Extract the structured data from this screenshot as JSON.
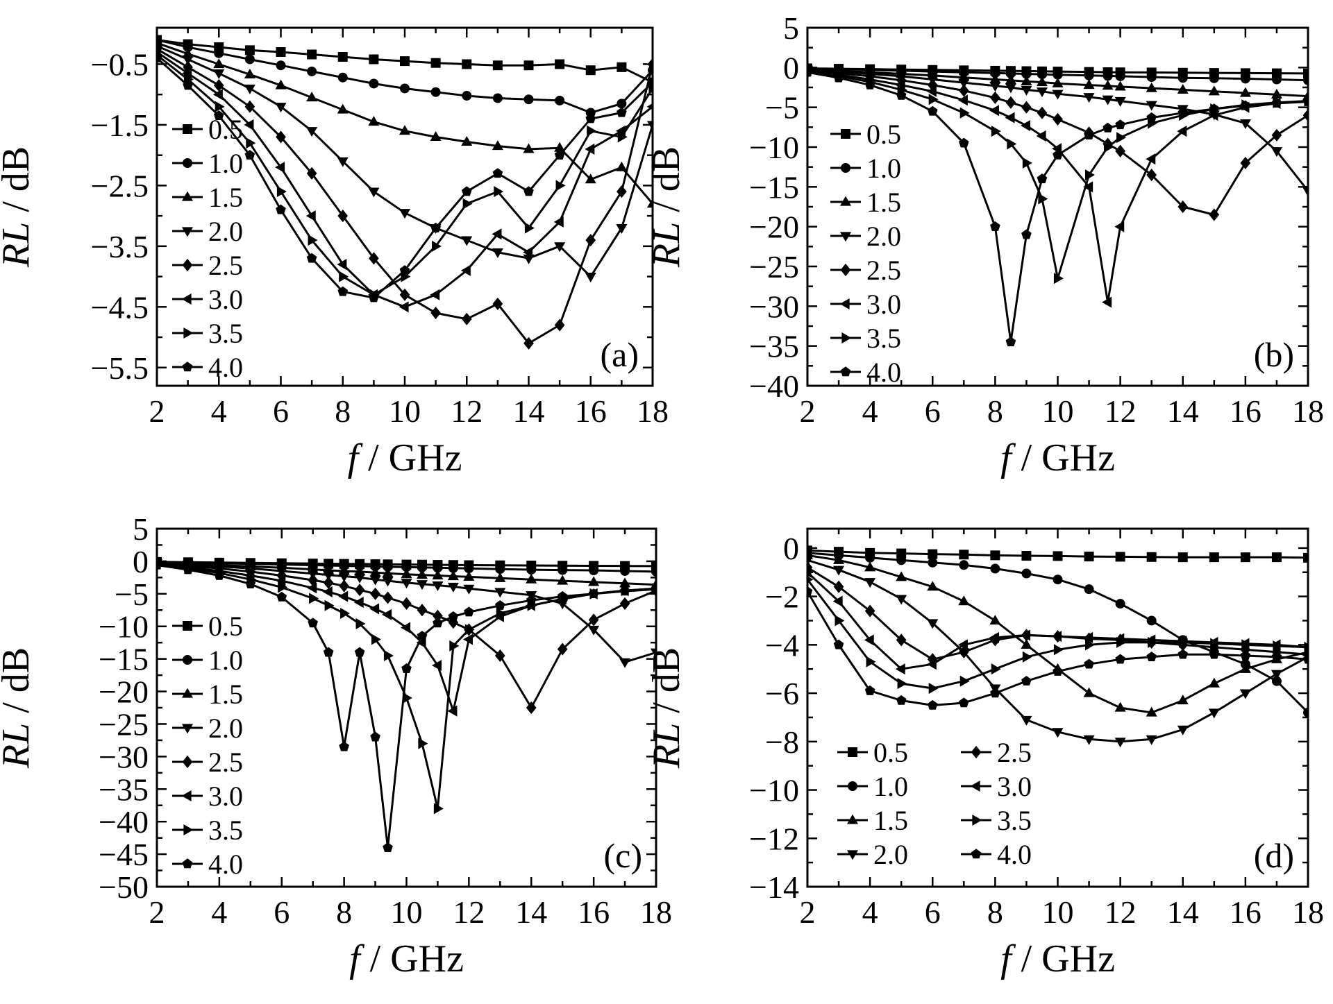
{
  "chart_data": [
    {
      "type": "line",
      "panel_label": "(a)",
      "xlabel_var": "f",
      "xlabel_unit": " / GHz",
      "ylabel_var": "RL",
      "ylabel_unit": " / dB",
      "xlim": [
        2,
        18
      ],
      "ylim": [
        -5.8,
        0.1
      ],
      "xticks": [
        2,
        4,
        6,
        8,
        10,
        12,
        14,
        16,
        18
      ],
      "xticklabels": [
        "2",
        "4",
        "6",
        "8",
        "10",
        "12",
        "14",
        "16",
        "18"
      ],
      "yticks": [
        -0.5,
        -1.5,
        -2.5,
        -3.5,
        -4.5,
        -5.5
      ],
      "yticklabels": [
        "−0.5",
        "−1.5",
        "−2.5",
        "−3.5",
        "−4.5",
        "−5.5"
      ],
      "legend_position": "left",
      "legend_columns": 1,
      "x": [
        2,
        3,
        4,
        5,
        6,
        7,
        8,
        9,
        10,
        11,
        12,
        13,
        14,
        15,
        16,
        17,
        18
      ],
      "series": [
        {
          "name": "0.5",
          "marker": "square",
          "values": [
            -0.1,
            -0.17,
            -0.22,
            -0.27,
            -0.3,
            -0.34,
            -0.38,
            -0.42,
            -0.45,
            -0.48,
            -0.5,
            -0.52,
            -0.52,
            -0.5,
            -0.6,
            -0.55,
            -0.8
          ]
        },
        {
          "name": "1.0",
          "marker": "circle",
          "values": [
            -0.1,
            -0.22,
            -0.32,
            -0.42,
            -0.52,
            -0.62,
            -0.72,
            -0.82,
            -0.9,
            -0.96,
            -1.02,
            -1.06,
            -1.08,
            -1.1,
            -1.3,
            -1.15,
            -0.6
          ]
        },
        {
          "name": "1.5",
          "marker": "triangle-up",
          "values": [
            -0.15,
            -0.33,
            -0.5,
            -0.67,
            -0.85,
            -1.05,
            -1.25,
            -1.45,
            -1.6,
            -1.7,
            -1.78,
            -1.85,
            -1.9,
            -1.88,
            -2.4,
            -2.2,
            -2.8
          ]
        },
        {
          "name": "2.0",
          "marker": "triangle-down",
          "values": [
            -0.2,
            -0.42,
            -0.65,
            -0.9,
            -1.2,
            -1.6,
            -2.1,
            -2.6,
            -2.95,
            -3.2,
            -3.4,
            -3.6,
            -3.7,
            -3.5,
            -4.0,
            -3.2,
            -1.5
          ]
        },
        {
          "name": "2.5",
          "marker": "diamond",
          "values": [
            -0.25,
            -0.55,
            -0.85,
            -1.2,
            -1.7,
            -2.3,
            -3.0,
            -3.7,
            -4.3,
            -4.6,
            -4.7,
            -4.45,
            -5.1,
            -4.8,
            -3.4,
            -2.6,
            -0.5
          ]
        },
        {
          "name": "3.0",
          "marker": "triangle-left",
          "values": [
            -0.3,
            -0.65,
            -1.0,
            -1.5,
            -2.2,
            -3.0,
            -3.8,
            -4.3,
            -4.5,
            -4.3,
            -3.9,
            -3.3,
            -3.6,
            -3.1,
            -1.9,
            -1.6,
            -1.2
          ]
        },
        {
          "name": "3.5",
          "marker": "triangle-right",
          "values": [
            -0.35,
            -0.75,
            -1.2,
            -1.8,
            -2.6,
            -3.4,
            -4.0,
            -4.3,
            -4.0,
            -3.5,
            -2.8,
            -2.6,
            -3.2,
            -2.5,
            -1.6,
            -1.7,
            -0.9
          ]
        },
        {
          "name": "4.0",
          "marker": "pentagon",
          "values": [
            -0.4,
            -0.85,
            -1.35,
            -2.0,
            -2.9,
            -3.7,
            -4.25,
            -4.35,
            -3.9,
            -3.2,
            -2.6,
            -2.3,
            -2.6,
            -2.0,
            -1.4,
            -1.3,
            -0.8
          ]
        }
      ]
    },
    {
      "type": "line",
      "panel_label": "(b)",
      "xlabel_var": "f",
      "xlabel_unit": " / GHz",
      "ylabel_var": "RL",
      "ylabel_unit": " / dB",
      "xlim": [
        2,
        18
      ],
      "ylim": [
        -40,
        5
      ],
      "xticks": [
        2,
        4,
        6,
        8,
        10,
        12,
        14,
        16,
        18
      ],
      "xticklabels": [
        "2",
        "4",
        "6",
        "8",
        "10",
        "12",
        "14",
        "16",
        "18"
      ],
      "yticks": [
        5,
        0,
        -5,
        -10,
        -15,
        -20,
        -25,
        -30,
        -35,
        -40
      ],
      "yticklabels": [
        "5",
        "0",
        "−5",
        "−10",
        "−15",
        "−20",
        "−25",
        "−30",
        "−35",
        "−40"
      ],
      "legend_position": "left",
      "legend_columns": 1,
      "x": [
        2,
        3,
        4,
        5,
        6,
        7,
        8,
        8.5,
        9,
        9.5,
        10,
        11,
        11.6,
        12,
        13,
        14,
        15,
        16,
        17,
        18
      ],
      "series": [
        {
          "name": "0.5",
          "marker": "square",
          "values": [
            -0.1,
            -0.15,
            -0.2,
            -0.25,
            -0.3,
            -0.35,
            -0.4,
            -0.42,
            -0.45,
            -0.48,
            -0.5,
            -0.55,
            -0.58,
            -0.6,
            -0.62,
            -0.65,
            -0.68,
            -0.7,
            -0.72,
            -0.75
          ]
        },
        {
          "name": "1.0",
          "marker": "circle",
          "values": [
            -0.1,
            -0.2,
            -0.3,
            -0.4,
            -0.5,
            -0.6,
            -0.7,
            -0.75,
            -0.8,
            -0.85,
            -0.9,
            -1.0,
            -1.05,
            -1.1,
            -1.2,
            -1.3,
            -1.35,
            -1.4,
            -1.5,
            -1.6
          ]
        },
        {
          "name": "1.5",
          "marker": "triangle-up",
          "values": [
            -0.2,
            -0.4,
            -0.6,
            -0.8,
            -1.0,
            -1.25,
            -1.5,
            -1.6,
            -1.75,
            -1.85,
            -2.0,
            -2.2,
            -2.3,
            -2.4,
            -2.6,
            -2.8,
            -3.0,
            -3.2,
            -3.4,
            -3.6
          ]
        },
        {
          "name": "2.0",
          "marker": "triangle-down",
          "values": [
            -0.25,
            -0.5,
            -0.8,
            -1.1,
            -1.5,
            -1.9,
            -2.3,
            -2.5,
            -2.8,
            -3.0,
            -3.3,
            -3.7,
            -4.0,
            -4.2,
            -4.7,
            -5.2,
            -5.9,
            -7.0,
            -10.5,
            -15.5
          ]
        },
        {
          "name": "2.5",
          "marker": "diamond",
          "values": [
            -0.3,
            -0.7,
            -1.1,
            -1.6,
            -2.2,
            -2.9,
            -3.8,
            -4.4,
            -5.0,
            -5.7,
            -6.5,
            -8.2,
            -9.6,
            -10.5,
            -13.5,
            -17.5,
            -18.5,
            -12.0,
            -8.5,
            -6.0
          ]
        },
        {
          "name": "3.0",
          "marker": "triangle-left",
          "values": [
            -0.4,
            -0.9,
            -1.5,
            -2.2,
            -3.0,
            -4.1,
            -5.4,
            -6.3,
            -7.3,
            -8.6,
            -10.2,
            -15.0,
            -29.5,
            -20.0,
            -11.5,
            -8.0,
            -6.0,
            -5.0,
            -4.5,
            -4.2
          ]
        },
        {
          "name": "3.5",
          "marker": "triangle-right",
          "values": [
            -0.5,
            -1.1,
            -1.8,
            -2.8,
            -4.0,
            -5.7,
            -8.0,
            -9.6,
            -12.0,
            -16.5,
            -26.5,
            -13.5,
            -10.0,
            -8.8,
            -7.0,
            -6.0,
            -5.2,
            -4.7,
            -4.4,
            -4.2
          ]
        },
        {
          "name": "4.0",
          "marker": "pentagon",
          "values": [
            -0.6,
            -1.3,
            -2.2,
            -3.5,
            -5.5,
            -9.5,
            -20.0,
            -34.5,
            -21.0,
            -14.0,
            -11.0,
            -8.5,
            -7.6,
            -7.2,
            -6.3,
            -5.7,
            -5.2,
            -4.8,
            -4.5,
            -4.3
          ]
        }
      ]
    },
    {
      "type": "line",
      "panel_label": "(c)",
      "xlabel_var": "f",
      "xlabel_unit": " / GHz",
      "ylabel_var": "RL",
      "ylabel_unit": " / dB",
      "xlim": [
        2,
        18
      ],
      "ylim": [
        -50,
        5
      ],
      "xticks": [
        2,
        4,
        6,
        8,
        10,
        12,
        14,
        16,
        18
      ],
      "xticklabels": [
        "2",
        "4",
        "6",
        "8",
        "10",
        "12",
        "14",
        "16",
        "18"
      ],
      "yticks": [
        5,
        0,
        -5,
        -10,
        -15,
        -20,
        -25,
        -30,
        -35,
        -40,
        -45,
        -50
      ],
      "yticklabels": [
        "5",
        "0",
        "−5",
        "−10",
        "−15",
        "−20",
        "−25",
        "−30",
        "−35",
        "−40",
        "−45",
        "−50"
      ],
      "legend_position": "left",
      "legend_columns": 1,
      "x": [
        2,
        3,
        4,
        5,
        6,
        7,
        7.5,
        8,
        8.5,
        9,
        9.4,
        10,
        10.5,
        11,
        11.5,
        12,
        13,
        14,
        15,
        16,
        17,
        18
      ],
      "series": [
        {
          "name": "0.5",
          "marker": "square",
          "values": [
            -0.1,
            -0.15,
            -0.2,
            -0.25,
            -0.3,
            -0.35,
            -0.38,
            -0.4,
            -0.42,
            -0.45,
            -0.47,
            -0.5,
            -0.52,
            -0.55,
            -0.57,
            -0.6,
            -0.62,
            -0.65,
            -0.68,
            -0.7,
            -0.72,
            -0.75
          ]
        },
        {
          "name": "1.0",
          "marker": "circle",
          "values": [
            -0.1,
            -0.2,
            -0.3,
            -0.4,
            -0.5,
            -0.6,
            -0.65,
            -0.7,
            -0.75,
            -0.8,
            -0.85,
            -0.9,
            -0.95,
            -1.0,
            -1.05,
            -1.1,
            -1.2,
            -1.3,
            -1.35,
            -1.4,
            -1.5,
            -1.6
          ]
        },
        {
          "name": "1.5",
          "marker": "triangle-up",
          "values": [
            -0.2,
            -0.4,
            -0.6,
            -0.8,
            -1.0,
            -1.25,
            -1.4,
            -1.5,
            -1.6,
            -1.75,
            -1.85,
            -2.0,
            -2.1,
            -2.2,
            -2.3,
            -2.4,
            -2.6,
            -2.8,
            -3.0,
            -3.2,
            -3.4,
            -3.6
          ]
        },
        {
          "name": "2.0",
          "marker": "triangle-down",
          "values": [
            -0.25,
            -0.5,
            -0.8,
            -1.1,
            -1.5,
            -1.9,
            -2.1,
            -2.3,
            -2.5,
            -2.8,
            -3.0,
            -3.3,
            -3.5,
            -3.7,
            -3.9,
            -4.2,
            -4.7,
            -5.2,
            -6.5,
            -10.5,
            -15.5,
            -14.0
          ]
        },
        {
          "name": "2.5",
          "marker": "diamond",
          "values": [
            -0.3,
            -0.7,
            -1.1,
            -1.6,
            -2.2,
            -2.9,
            -3.3,
            -3.8,
            -4.4,
            -5.0,
            -5.6,
            -6.5,
            -7.5,
            -8.4,
            -9.4,
            -10.5,
            -14.5,
            -22.5,
            -13.5,
            -9.0,
            -6.5,
            -4.5
          ]
        },
        {
          "name": "3.0",
          "marker": "triangle-left",
          "values": [
            -0.4,
            -0.9,
            -1.5,
            -2.2,
            -3.0,
            -4.1,
            -4.7,
            -5.4,
            -6.3,
            -7.3,
            -8.2,
            -10.2,
            -12.5,
            -16.0,
            -23.0,
            -12.0,
            -8.5,
            -6.8,
            -5.8,
            -5.0,
            -4.5,
            -4.2
          ]
        },
        {
          "name": "3.5",
          "marker": "triangle-right",
          "values": [
            -0.5,
            -1.1,
            -1.8,
            -2.8,
            -4.0,
            -5.7,
            -6.8,
            -8.0,
            -9.6,
            -12.0,
            -14.5,
            -21.0,
            -28.0,
            -38.0,
            -13.0,
            -10.5,
            -8.0,
            -6.8,
            -5.8,
            -5.0,
            -4.5,
            -4.2
          ]
        },
        {
          "name": "4.0",
          "marker": "pentagon",
          "values": [
            -0.6,
            -1.3,
            -2.2,
            -3.5,
            -5.5,
            -9.5,
            -14.0,
            -28.5,
            -14.0,
            -27.0,
            -44.0,
            -16.5,
            -11.5,
            -9.5,
            -8.5,
            -7.8,
            -6.8,
            -6.0,
            -5.4,
            -5.0,
            -4.6,
            -4.3
          ]
        }
      ]
    },
    {
      "type": "line",
      "panel_label": "(d)",
      "xlabel_var": "f",
      "xlabel_unit": " / GHz",
      "ylabel_var": "RL",
      "ylabel_unit": " / dB",
      "xlim": [
        2,
        18
      ],
      "ylim": [
        -14,
        0.8
      ],
      "xticks": [
        2,
        4,
        6,
        8,
        10,
        12,
        14,
        16,
        18
      ],
      "xticklabels": [
        "2",
        "4",
        "6",
        "8",
        "10",
        "12",
        "14",
        "16",
        "18"
      ],
      "yticks": [
        0,
        -2,
        -4,
        -6,
        -8,
        -10,
        -12,
        -14
      ],
      "yticklabels": [
        "0",
        "−2",
        "−4",
        "−6",
        "−8",
        "−10",
        "−12",
        "−14"
      ],
      "legend_position": "bottom-left",
      "legend_columns": 2,
      "x": [
        2,
        3,
        4,
        5,
        6,
        7,
        8,
        9,
        10,
        11,
        12,
        13,
        14,
        15,
        16,
        17,
        18
      ],
      "series": [
        {
          "name": "0.5",
          "marker": "square",
          "values": [
            -0.1,
            -0.15,
            -0.2,
            -0.22,
            -0.25,
            -0.27,
            -0.3,
            -0.32,
            -0.33,
            -0.35,
            -0.36,
            -0.37,
            -0.38,
            -0.38,
            -0.38,
            -0.38,
            -0.4
          ]
        },
        {
          "name": "1.0",
          "marker": "circle",
          "values": [
            -0.2,
            -0.3,
            -0.4,
            -0.5,
            -0.6,
            -0.7,
            -0.85,
            -1.05,
            -1.3,
            -1.7,
            -2.3,
            -3.0,
            -3.8,
            -4.3,
            -4.8,
            -5.5,
            -6.8
          ]
        },
        {
          "name": "1.5",
          "marker": "triangle-up",
          "values": [
            -0.3,
            -0.5,
            -0.8,
            -1.2,
            -1.6,
            -2.2,
            -3.0,
            -4.0,
            -5.0,
            -6.0,
            -6.6,
            -6.8,
            -6.3,
            -5.6,
            -5.0,
            -4.6,
            -4.3
          ]
        },
        {
          "name": "2.0",
          "marker": "triangle-down",
          "values": [
            -0.5,
            -0.9,
            -1.4,
            -2.1,
            -3.1,
            -4.3,
            -5.8,
            -7.1,
            -7.6,
            -7.9,
            -8.0,
            -7.9,
            -7.5,
            -6.8,
            -6.0,
            -5.2,
            -4.5
          ]
        },
        {
          "name": "2.5",
          "marker": "diamond",
          "values": [
            -0.8,
            -1.6,
            -2.6,
            -3.8,
            -4.6,
            -4.3,
            -3.8,
            -3.6,
            -3.65,
            -3.75,
            -3.8,
            -3.9,
            -4.0,
            -4.1,
            -4.2,
            -4.3,
            -4.4
          ]
        },
        {
          "name": "3.0",
          "marker": "triangle-left",
          "values": [
            -1.0,
            -2.2,
            -3.8,
            -5.0,
            -4.8,
            -4.0,
            -3.7,
            -3.6,
            -3.65,
            -3.7,
            -3.75,
            -3.8,
            -3.85,
            -3.9,
            -3.95,
            -4.0,
            -4.1
          ]
        },
        {
          "name": "3.5",
          "marker": "triangle-right",
          "values": [
            -1.3,
            -3.0,
            -4.7,
            -5.6,
            -5.8,
            -5.5,
            -5.0,
            -4.5,
            -4.2,
            -4.0,
            -3.9,
            -3.9,
            -3.9,
            -3.95,
            -4.0,
            -4.05,
            -4.1
          ]
        },
        {
          "name": "4.0",
          "marker": "pentagon",
          "values": [
            -1.8,
            -4.0,
            -5.9,
            -6.3,
            -6.5,
            -6.4,
            -6.0,
            -5.5,
            -5.1,
            -4.8,
            -4.6,
            -4.5,
            -4.4,
            -4.4,
            -4.45,
            -4.5,
            -4.6
          ]
        }
      ]
    }
  ]
}
